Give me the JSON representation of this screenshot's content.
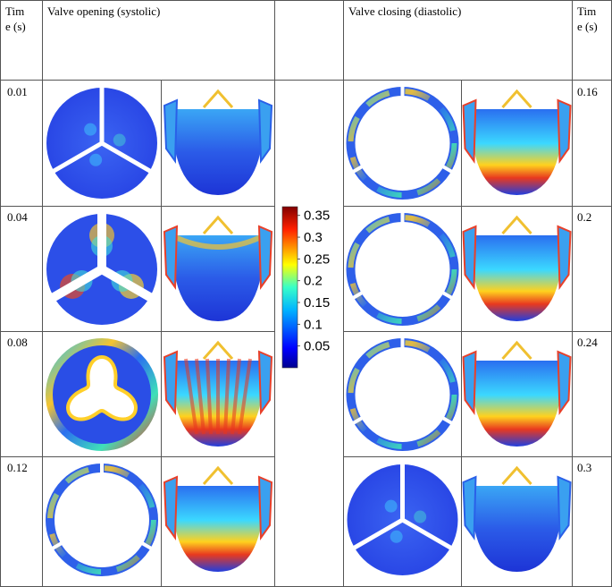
{
  "header": {
    "time_left_line1": "Tim",
    "time_left_line2": "e (s)",
    "opening": "Valve opening (systolic)",
    "closing": "Valve closing (diastolic)",
    "time_right_line1": "Tim",
    "time_right_line2": "e (s)"
  },
  "rows": [
    {
      "time_open": "0.01",
      "time_close": "0.16",
      "open_top": "closed",
      "open_side": "closed",
      "close_top": "ring",
      "close_side": "open"
    },
    {
      "time_open": "0.04",
      "time_close": "0.2",
      "open_top": "partial",
      "open_side": "partial",
      "close_top": "ring",
      "close_side": "open"
    },
    {
      "time_open": "0.08",
      "time_close": "0.24",
      "open_top": "wavy",
      "open_side": "open-stress",
      "close_top": "ring",
      "close_side": "open"
    },
    {
      "time_open": "0.12",
      "time_close": "0.3",
      "open_top": "ring",
      "open_side": "open",
      "close_top": "closed",
      "close_side": "closed"
    }
  ],
  "colorbar": {
    "ticks": [
      0.35,
      0.3,
      0.25,
      0.2,
      0.15,
      0.1,
      0.05
    ],
    "tick_labels": [
      "0.35",
      "0.3",
      "0.25",
      "0.2",
      "0.15",
      "0.1",
      "0.05"
    ],
    "min": 0.0,
    "max": 0.37
  },
  "colors": {
    "jet_dark_blue": "#00008f",
    "jet_blue": "#1d5ff0",
    "jet_cyan": "#18d6ff",
    "jet_yellow": "#ffe21a",
    "jet_red": "#e8241a",
    "grid_line": "#555555"
  }
}
